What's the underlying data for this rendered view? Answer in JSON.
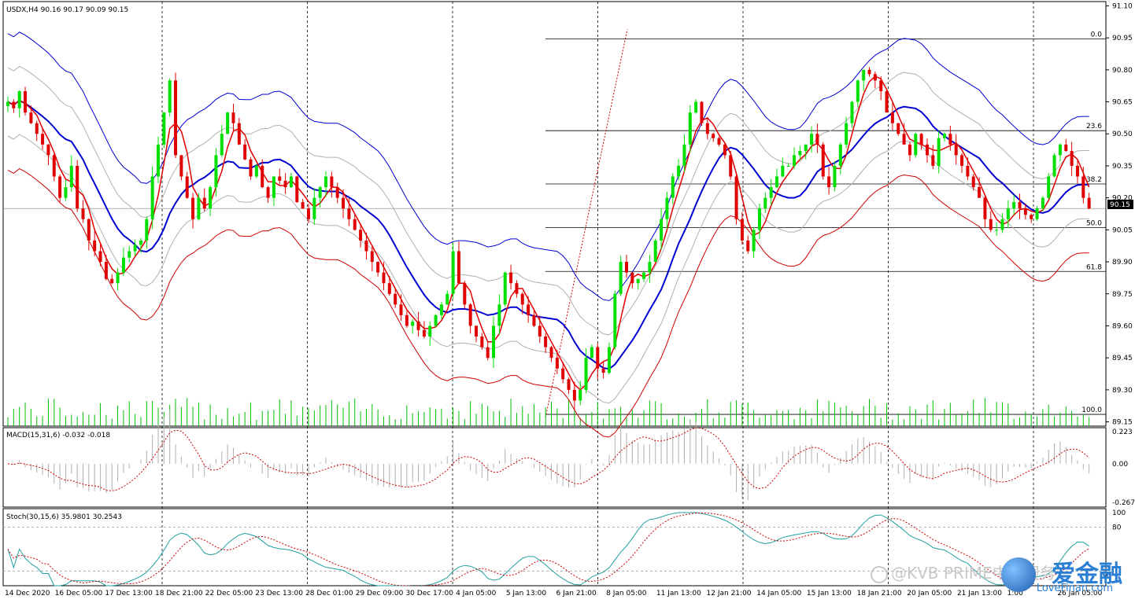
{
  "chart_data": {
    "type": "candlestick",
    "symbol_header": "USDX,H4  90.16 90.17 90.09 90.15",
    "current_price_label": "90.15",
    "price_axis": {
      "ylim": [
        89.13,
        91.12
      ],
      "ticks": [
        "91.10",
        "90.95",
        "90.80",
        "90.65",
        "90.50",
        "90.35",
        "90.20",
        "90.05",
        "89.90",
        "89.75",
        "89.60",
        "89.45",
        "89.30",
        "89.15"
      ]
    },
    "time_axis": [
      "14 Dec 2020",
      "16 Dec 05:00",
      "17 Dec 13:00",
      "18 Dec 21:00",
      "22 Dec 05:00",
      "23 Dec 13:00",
      "28 Dec 01:00",
      "29 Dec 09:00",
      "30 Dec 17:00",
      "4 Jan 05:00",
      "5 Jan 13:00",
      "6 Jan 21:00",
      "8 Jan 05:00",
      "11 Jan 13:00",
      "12 Jan 21:00",
      "14 Jan 05:00",
      "15 Jan 13:00",
      "18 Jan 21:00",
      "20 Jan 05:00",
      "21 Jan 13:00",
      "1:00",
      "26 Jan 05:00"
    ],
    "fibonacci": {
      "levels": [
        {
          "label": "0.0",
          "price": 90.945
        },
        {
          "label": "23.6",
          "price": 90.515
        },
        {
          "label": "38.2",
          "price": 90.265
        },
        {
          "label": "50.0",
          "price": 90.06
        },
        {
          "label": "61.8",
          "price": 89.855
        },
        {
          "label": "100.0",
          "price": 89.185
        }
      ]
    },
    "close_path": [
      90.65,
      90.62,
      90.7,
      90.6,
      90.55,
      90.5,
      90.45,
      90.4,
      90.3,
      90.2,
      90.25,
      90.35,
      90.15,
      90.1,
      90.0,
      89.95,
      89.9,
      89.82,
      89.8,
      89.85,
      89.92,
      89.95,
      89.98,
      90.0,
      90.1,
      90.3,
      90.45,
      90.6,
      90.75,
      90.4,
      90.3,
      90.2,
      90.1,
      90.2,
      90.15,
      90.25,
      90.4,
      90.5,
      90.6,
      90.55,
      90.45,
      90.38,
      90.3,
      90.35,
      90.25,
      90.2,
      90.3,
      90.28,
      90.25,
      90.3,
      90.18,
      90.15,
      90.1,
      90.2,
      90.25,
      90.3,
      90.25,
      90.2,
      90.15,
      90.1,
      90.05,
      90.0,
      89.95,
      89.9,
      89.85,
      89.8,
      89.75,
      89.7,
      89.65,
      89.6,
      89.62,
      89.58,
      89.55,
      89.6,
      89.65,
      89.7,
      89.75,
      89.95,
      89.8,
      89.7,
      89.6,
      89.55,
      89.5,
      89.45,
      89.6,
      89.7,
      89.85,
      89.8,
      89.75,
      89.7,
      89.65,
      89.6,
      89.55,
      89.5,
      89.45,
      89.4,
      89.35,
      89.3,
      89.25,
      89.3,
      89.45,
      89.5,
      89.4,
      89.38,
      89.5,
      89.75,
      89.9,
      89.85,
      89.8,
      89.82,
      89.85,
      89.9,
      90.0,
      90.1,
      90.2,
      90.3,
      90.35,
      90.45,
      90.6,
      90.65,
      90.55,
      90.5,
      90.48,
      90.45,
      90.4,
      90.3,
      90.1,
      90.0,
      89.95,
      90.05,
      90.15,
      90.2,
      90.25,
      90.3,
      90.35,
      90.35,
      90.4,
      90.42,
      90.45,
      90.5,
      90.45,
      90.3,
      90.25,
      90.35,
      90.45,
      90.55,
      90.65,
      90.75,
      90.8,
      90.78,
      90.75,
      90.7,
      90.6,
      90.55,
      90.5,
      90.45,
      90.4,
      90.5,
      90.45,
      90.4,
      90.35,
      90.48,
      90.5,
      90.45,
      90.4,
      90.35,
      90.3,
      90.25,
      90.2,
      90.1,
      90.05,
      90.05,
      90.1,
      90.15,
      90.18,
      90.15,
      90.12,
      90.1,
      90.15,
      90.2,
      90.3,
      90.4,
      90.45,
      90.42,
      90.35,
      90.3,
      90.2,
      90.15
    ]
  },
  "indicators": {
    "macd": {
      "label": "MACD(15,31,6) -0.032 -0.018",
      "ticks": [
        "0.223",
        "0.00",
        "-0.267"
      ],
      "ylim": [
        -0.3,
        0.25
      ]
    },
    "stoch": {
      "label": "Stoch(30,15,6) 35.9801 30.2543",
      "ticks": [
        "100",
        "80"
      ],
      "ylim": [
        0,
        100
      ]
    }
  },
  "watermark": {
    "account": "@KVB PRIME中文服务",
    "brand": "爱金融",
    "url": "LoveFinan.com"
  },
  "colors": {
    "up": "#00e000",
    "down": "#e00000",
    "ma_fast": "#e00000",
    "ma_mid": "#0000d0",
    "band": "#0000d0",
    "lower_band": "#cc0000",
    "macd_hist": "#b0b0b0",
    "macd_signal": "#cc0000",
    "stoch_k": "#20a0a0",
    "stoch_d": "#cc0000",
    "volume": "#00c000"
  }
}
